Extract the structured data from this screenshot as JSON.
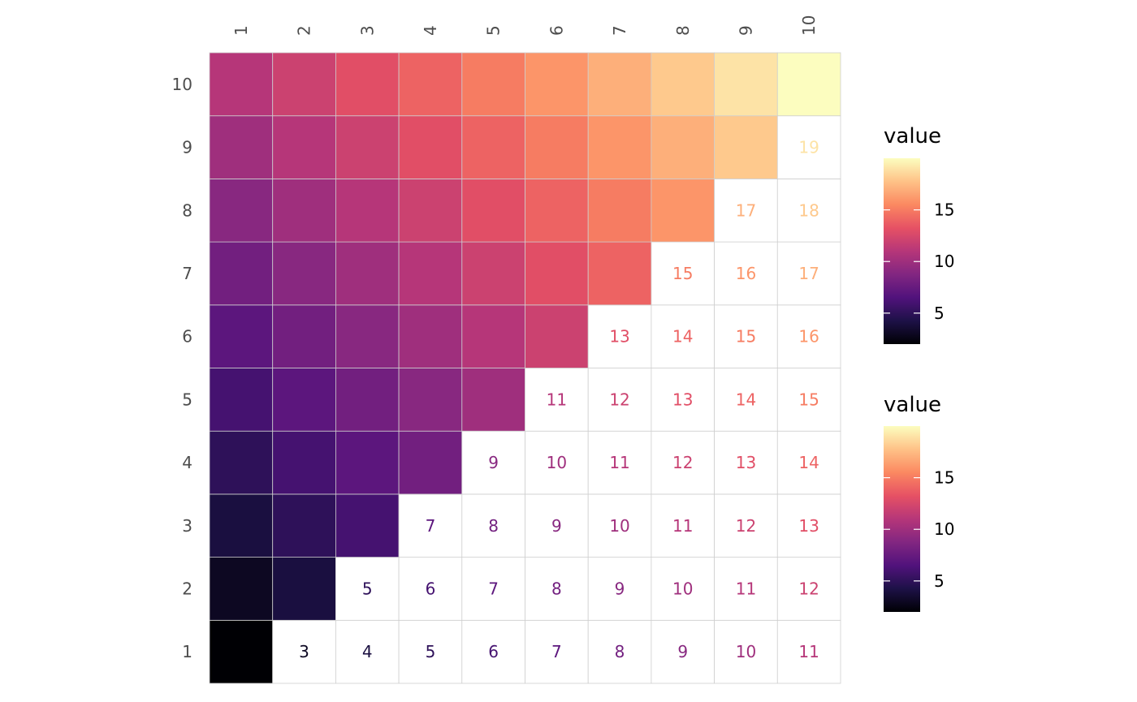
{
  "chart_data": {
    "type": "heatmap",
    "x_categories": [
      "1",
      "2",
      "3",
      "4",
      "5",
      "6",
      "7",
      "8",
      "9",
      "10"
    ],
    "y_categories": [
      "1",
      "2",
      "3",
      "4",
      "5",
      "6",
      "7",
      "8",
      "9",
      "10"
    ],
    "value_rule": "value = row + column",
    "lower_triangle_fill": "colored cells (row >= column) filled by value, viridis magma scale",
    "upper_triangle_labels": "cells with row < column show value as text colored by value",
    "legends": [
      {
        "title": "value",
        "ticks": [
          5,
          10,
          15
        ],
        "range": [
          2,
          20
        ]
      },
      {
        "title": "value",
        "ticks": [
          5,
          10,
          15
        ],
        "range": [
          2,
          20
        ]
      }
    ],
    "palette": [
      "#000004",
      "#1d1147",
      "#51127c",
      "#822681",
      "#b63679",
      "#e65164",
      "#fb8861",
      "#fec287",
      "#fcfdbf"
    ]
  }
}
